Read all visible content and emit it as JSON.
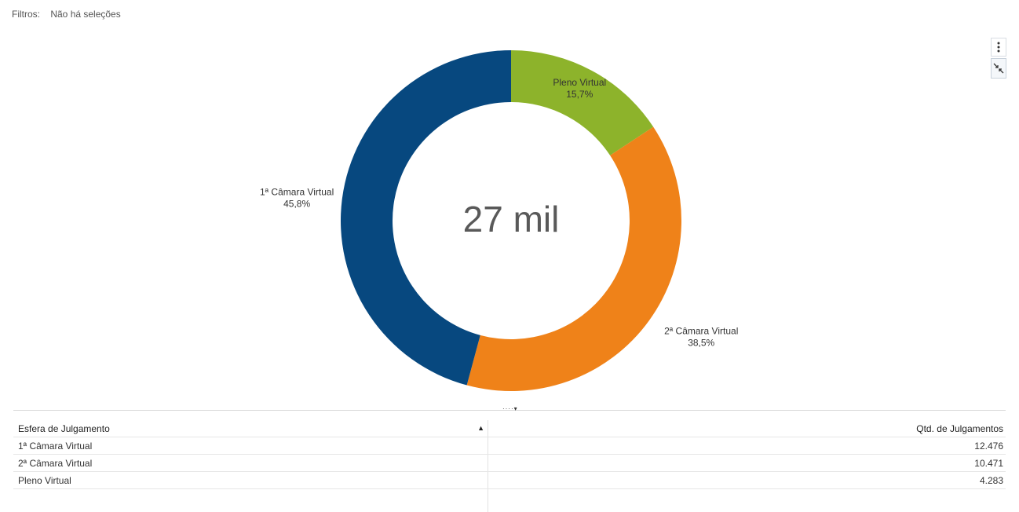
{
  "filters": {
    "label": "Filtros:",
    "value": "Não há seleções"
  },
  "toolbar": {
    "menu_icon": "vertical-dots-icon",
    "collapse_icon": "collapse-arrows-icon"
  },
  "chart_data": {
    "type": "pie",
    "donut": true,
    "center_text": "27 mil",
    "slices": [
      {
        "label": "Pleno Virtual",
        "percent_label": "15,7%",
        "value": 4283,
        "color": "#8db32b"
      },
      {
        "label": "2ª Câmara Virtual",
        "percent_label": "38,5%",
        "value": 10471,
        "color": "#ef8219"
      },
      {
        "label": "1ª Câmara Virtual",
        "percent_label": "45,8%",
        "value": 12476,
        "color": "#07487f"
      }
    ]
  },
  "table": {
    "headers": [
      "Esfera de Julgamento",
      "Qtd. de Julgamentos"
    ],
    "rows": [
      [
        "1ª Câmara Virtual",
        "12.476"
      ],
      [
        "2ª Câmara Virtual",
        "10.471"
      ],
      [
        "Pleno Virtual",
        "4.283"
      ]
    ]
  }
}
